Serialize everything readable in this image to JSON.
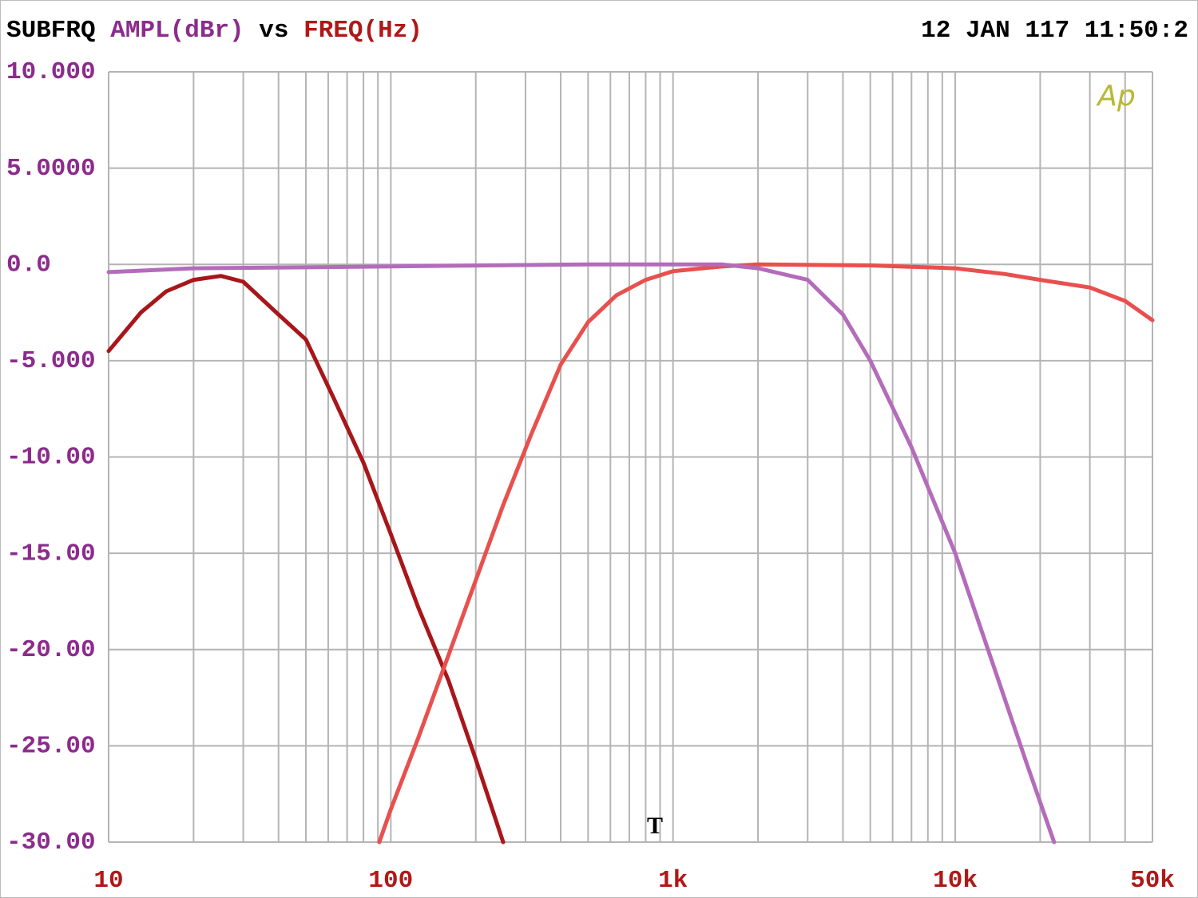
{
  "chart_data": {
    "type": "line",
    "title": [
      "SUBFRQ",
      "AMPL(dBr)",
      "vs",
      "FREQ(Hz)"
    ],
    "timestamp": "12 JAN 117 11:50:2",
    "annotations": [
      "Ap",
      "T"
    ],
    "xscale": "log",
    "xlim": [
      10,
      50000
    ],
    "ylim": [
      -30,
      10
    ],
    "xticks": [
      10,
      100,
      {
        "value": 1000,
        "label": "1k"
      },
      {
        "value": 10000,
        "label": "10k"
      },
      {
        "value": 50000,
        "label": "50k"
      }
    ],
    "xminor": [
      20,
      30,
      40,
      50,
      60,
      70,
      80,
      90,
      200,
      300,
      400,
      500,
      600,
      700,
      800,
      900,
      2000,
      3000,
      4000,
      5000,
      6000,
      7000,
      8000,
      9000,
      20000,
      30000,
      40000
    ],
    "yticks": [
      {
        "value": 10,
        "label": "10.000"
      },
      {
        "value": 5,
        "label": "5.0000"
      },
      {
        "value": 0,
        "label": "0.0"
      },
      {
        "value": -5,
        "label": "-5.000"
      },
      {
        "value": -10,
        "label": "-10.00"
      },
      {
        "value": -15,
        "label": "-15.00"
      },
      {
        "value": -20,
        "label": "-20.00"
      },
      {
        "value": -25,
        "label": "-25.00"
      },
      {
        "value": -30,
        "label": "-30.00"
      }
    ],
    "grid": true,
    "series": [
      {
        "color": "#a8161a",
        "x": [
          10,
          13,
          16,
          20,
          25,
          30,
          40,
          50,
          63,
          80,
          100,
          125,
          160,
          200,
          250
        ],
        "values": [
          -4.5,
          -2.5,
          -1.4,
          -0.8,
          -0.6,
          -0.9,
          -2.6,
          -3.9,
          -7,
          -10.3,
          -14,
          -17.8,
          -21.6,
          -25.7,
          -30
        ]
      },
      {
        "color": "#e8504e",
        "x": [
          91,
          100,
          125,
          160,
          200,
          250,
          315,
          400,
          500,
          630,
          800,
          1000,
          1500,
          2000,
          5000,
          10000,
          15000,
          20000,
          30000,
          40000,
          50000
        ],
        "values": [
          -30,
          -28.3,
          -24.6,
          -20.3,
          -16.4,
          -12.5,
          -8.8,
          -5.2,
          -3,
          -1.6,
          -0.8,
          -0.35,
          -0.1,
          0,
          -0.05,
          -0.2,
          -0.5,
          -0.8,
          -1.2,
          -1.9,
          -2.9
        ]
      },
      {
        "color": "#b46cba",
        "x": [
          10,
          20,
          50,
          100,
          500,
          1000,
          1500,
          2000,
          3000,
          4000,
          5000,
          7000,
          10000,
          14000,
          18000,
          22400
        ],
        "values": [
          -0.4,
          -0.2,
          -0.15,
          -0.1,
          0,
          0,
          0,
          -0.2,
          -0.8,
          -2.6,
          -5,
          -9.5,
          -15,
          -21.3,
          -26,
          -30
        ]
      }
    ]
  }
}
